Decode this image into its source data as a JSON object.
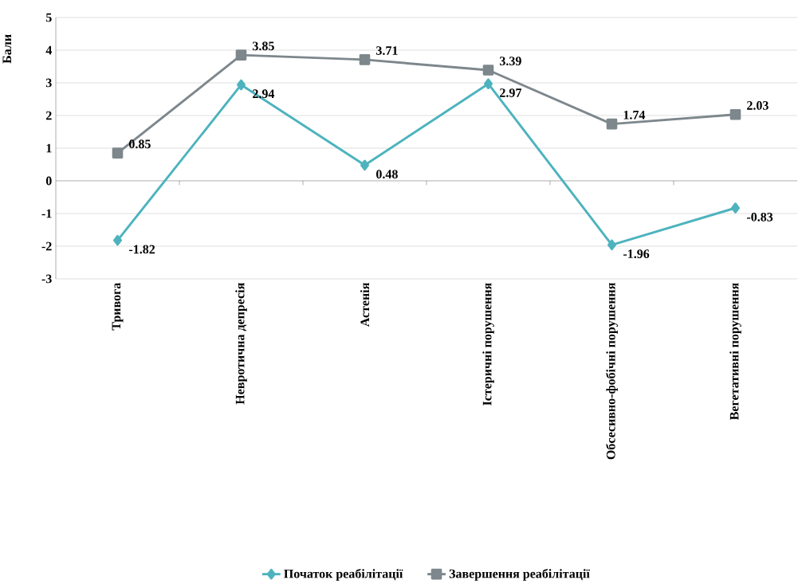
{
  "chart_data": {
    "type": "line",
    "ylabel": "Бали",
    "categories": [
      "Тривога",
      "Невротична депресія",
      "Астенія",
      "Істеричні порушення",
      "Обсесивно-фобічні порушення",
      "Вегетативні порушення"
    ],
    "series": [
      {
        "name": "Початок реабілітації",
        "color": "#4db3be",
        "marker": "diamond",
        "values": [
          -1.82,
          2.94,
          0.48,
          2.97,
          -1.96,
          -0.83
        ]
      },
      {
        "name": "Завершення реабілітації",
        "color": "#7d878c",
        "marker": "square",
        "values": [
          0.85,
          3.85,
          3.71,
          3.39,
          1.74,
          2.03
        ]
      }
    ],
    "ylim": [
      -3,
      5
    ],
    "yticks": [
      -3,
      -2,
      -1,
      0,
      1,
      2,
      3,
      4,
      5
    ],
    "grid": "y",
    "legend": "bottom",
    "data_labels": true,
    "line_style": "solid"
  }
}
